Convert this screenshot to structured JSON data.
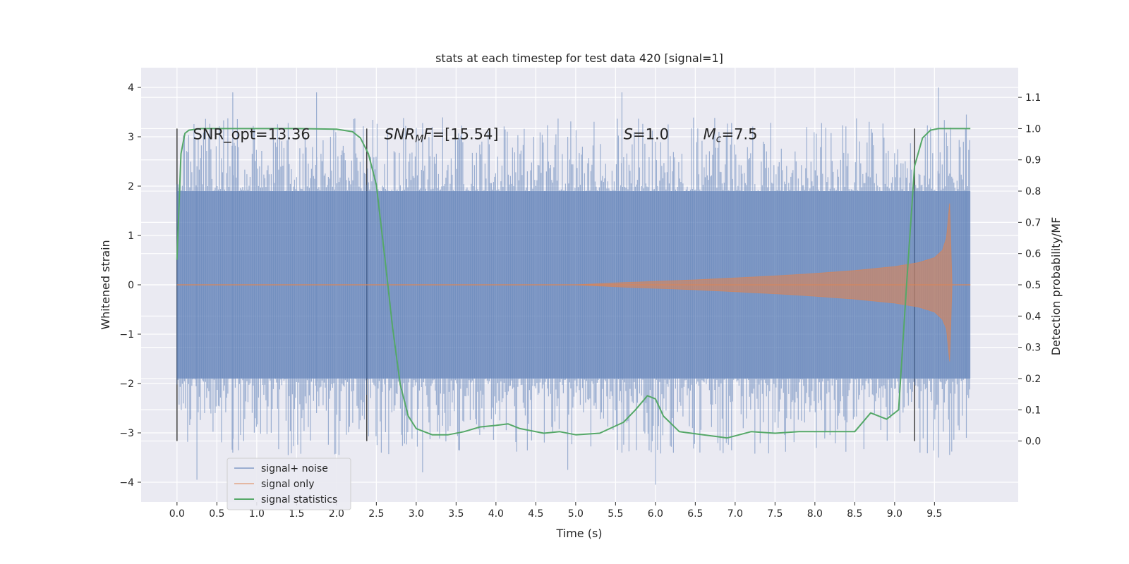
{
  "chart_data": {
    "type": "line",
    "title": "stats at each timestep for test data 420 [signal=1]",
    "xlabel": "Time (s)",
    "ylabel": "Whitened strain",
    "y2label": "Detection probability/MF",
    "xlim": [
      -0.45,
      10.55
    ],
    "ylim": [
      -4.4,
      4.4
    ],
    "y2lim": [
      -0.195,
      1.195
    ],
    "x_ticks": [
      0.0,
      0.5,
      1.0,
      1.5,
      2.0,
      2.5,
      3.0,
      3.5,
      4.0,
      4.5,
      5.0,
      5.5,
      6.0,
      6.5,
      7.0,
      7.5,
      8.0,
      8.5,
      9.0,
      9.5
    ],
    "x_tick_labels": [
      "0.0",
      "0.5",
      "1.0",
      "1.5",
      "2.0",
      "2.5",
      "3.0",
      "3.5",
      "4.0",
      "4.5",
      "5.0",
      "5.5",
      "6.0",
      "6.5",
      "7.0",
      "7.5",
      "8.0",
      "8.5",
      "9.0",
      "9.5"
    ],
    "y_ticks": [
      4,
      3,
      2,
      1,
      0,
      -1,
      -2,
      -3,
      -4
    ],
    "y_tick_labels": [
      "4",
      "3",
      "2",
      "1",
      "0",
      "−1",
      "−2",
      "−3",
      "−4"
    ],
    "y2_ticks": [
      1.1,
      1.0,
      0.9,
      0.8,
      0.7,
      0.6,
      0.5,
      0.4,
      0.3,
      0.2,
      0.1,
      0.0
    ],
    "y2_tick_labels": [
      "1.1",
      "1.0",
      "0.9",
      "0.8",
      "0.7",
      "0.6",
      "0.5",
      "0.4",
      "0.3",
      "0.2",
      "0.1",
      "0.0"
    ],
    "grid": true,
    "legend_position": "lower-left",
    "series": [
      {
        "name": "signal+ noise",
        "color": "#4c72b0",
        "kind": "noise_band",
        "t_range": [
          0.0,
          9.95
        ],
        "envelope": [
          -1.9,
          1.9
        ],
        "spike_extremes": [
          3.9,
          -4.05
        ]
      },
      {
        "name": "signal only",
        "color": "#dd8452",
        "kind": "chirp",
        "x": [
          0.0,
          5.0,
          5.5,
          6.0,
          6.5,
          7.0,
          7.5,
          8.0,
          8.5,
          9.0,
          9.3,
          9.5,
          9.6,
          9.65,
          9.69,
          9.72,
          9.95
        ],
        "amplitude": [
          0.0,
          0.0,
          0.04,
          0.07,
          0.1,
          0.14,
          0.18,
          0.23,
          0.29,
          0.37,
          0.45,
          0.55,
          0.7,
          0.95,
          1.65,
          0.0,
          0.0
        ]
      },
      {
        "name": "signal statistics",
        "color": "#55a868",
        "kind": "line",
        "x": [
          0.0,
          0.05,
          0.1,
          0.15,
          0.3,
          0.6,
          1.0,
          1.5,
          2.0,
          2.2,
          2.3,
          2.4,
          2.5,
          2.6,
          2.7,
          2.8,
          2.9,
          3.0,
          3.2,
          3.4,
          3.6,
          3.8,
          4.0,
          4.15,
          4.3,
          4.6,
          4.8,
          5.0,
          5.3,
          5.6,
          5.75,
          5.9,
          6.0,
          6.1,
          6.3,
          6.6,
          6.9,
          7.2,
          7.5,
          7.8,
          8.2,
          8.5,
          8.7,
          8.9,
          9.05,
          9.15,
          9.25,
          9.35,
          9.45,
          9.55,
          9.7,
          9.95
        ],
        "y": [
          0.58,
          0.92,
          0.985,
          0.995,
          1.0,
          1.0,
          1.0,
          1.0,
          0.998,
          0.99,
          0.97,
          0.92,
          0.82,
          0.6,
          0.37,
          0.18,
          0.08,
          0.04,
          0.02,
          0.02,
          0.03,
          0.045,
          0.05,
          0.055,
          0.04,
          0.025,
          0.03,
          0.02,
          0.025,
          0.06,
          0.1,
          0.145,
          0.135,
          0.08,
          0.03,
          0.02,
          0.01,
          0.03,
          0.025,
          0.03,
          0.03,
          0.03,
          0.09,
          0.07,
          0.1,
          0.5,
          0.88,
          0.97,
          0.995,
          1.0,
          1.0,
          1.0
        ]
      }
    ],
    "vlines": [
      0.0,
      2.38,
      9.25
    ],
    "annotations": [
      {
        "x": 0.2,
        "y": 3.05,
        "parts": [
          {
            "t": "SNR_opt=13.36",
            "style": "normal"
          }
        ]
      },
      {
        "x": 2.6,
        "y": 3.05,
        "parts": [
          {
            "t": "SNR",
            "style": "italic"
          },
          {
            "t": "M",
            "style": "italic-sub"
          },
          {
            "t": "F",
            "style": "italic"
          },
          {
            "t": "=[15.54]",
            "style": "normal"
          }
        ]
      },
      {
        "x": 5.6,
        "y": 3.05,
        "parts": [
          {
            "t": "S",
            "style": "italic"
          },
          {
            "t": "=1.0",
            "style": "normal"
          }
        ]
      },
      {
        "x": 6.6,
        "y": 3.05,
        "parts": [
          {
            "t": "M",
            "style": "italic"
          },
          {
            "t": "c",
            "style": "italic-sub"
          },
          {
            "t": "=7.5",
            "style": "normal"
          }
        ]
      }
    ]
  }
}
